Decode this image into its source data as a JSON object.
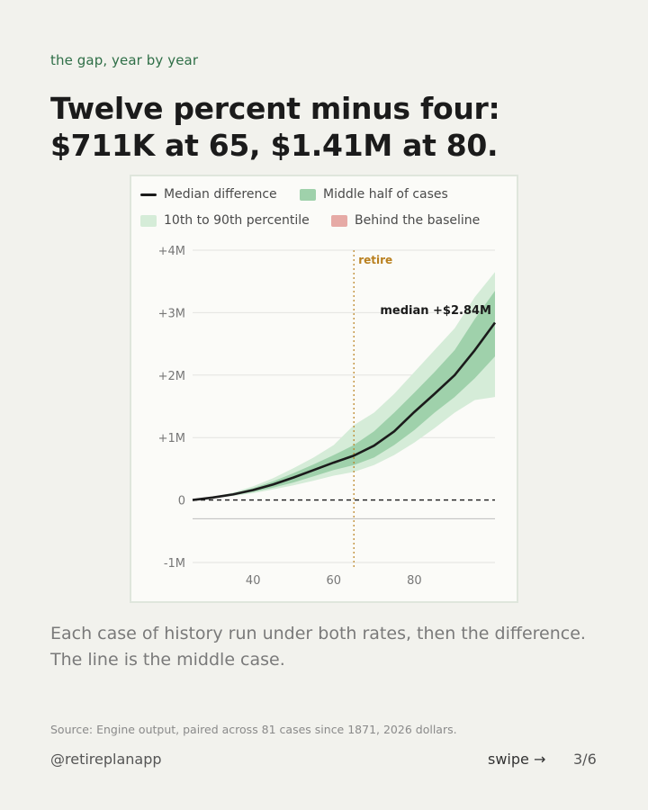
{
  "eyebrow": "the gap, year by year",
  "headline": "Twelve percent minus four: $711K at 65, $1.41M at 80.",
  "body_text": "Each case of history run under both rates, then the difference. The line is the middle case.",
  "source": "Source: Engine output, paired across 81 cases since 1871, 2026 dollars.",
  "footer": {
    "handle": "@retireplanapp",
    "swipe": "swipe →",
    "page": "3/6"
  },
  "colors": {
    "median": "#1b1b1b",
    "middle_half": "#9fd1ab",
    "p10_p90": "#d5ecd8",
    "behind": "#e6aaa6",
    "retire": "#b9801f"
  },
  "chart_data": {
    "type": "area",
    "legend": [
      {
        "label": "Median difference",
        "kind": "line",
        "color": "#1b1b1b"
      },
      {
        "label": "Middle half of cases",
        "kind": "box",
        "color": "#9fd1ab"
      },
      {
        "label": "10th to 90th percentile",
        "kind": "box",
        "color": "#d5ecd8"
      },
      {
        "label": "Behind the baseline",
        "kind": "box",
        "color": "#e6aaa6"
      }
    ],
    "x": [
      25,
      30,
      35,
      40,
      45,
      50,
      55,
      60,
      65,
      70,
      75,
      80,
      85,
      90,
      95,
      100
    ],
    "xlim": [
      25,
      100
    ],
    "xticks": [
      40,
      60,
      80
    ],
    "ylim": [
      -1000000,
      4000000
    ],
    "yticks": [
      -1000000,
      0,
      1000000,
      2000000,
      3000000,
      4000000
    ],
    "ytick_labels": [
      "-1M",
      "0",
      "+1M",
      "+2M",
      "+3M",
      "+4M"
    ],
    "series": [
      {
        "name": "Median difference",
        "values": [
          0,
          40000,
          90000,
          160000,
          250000,
          360000,
          480000,
          600000,
          711000,
          870000,
          1100000,
          1410000,
          1700000,
          2000000,
          2400000,
          2840000
        ]
      },
      {
        "name": "25th percentile",
        "values": [
          0,
          35000,
          75000,
          130000,
          200000,
          280000,
          380000,
          480000,
          560000,
          680000,
          880000,
          1120000,
          1400000,
          1650000,
          1950000,
          2300000
        ]
      },
      {
        "name": "75th percentile",
        "values": [
          0,
          45000,
          105000,
          190000,
          300000,
          430000,
          570000,
          720000,
          880000,
          1100000,
          1400000,
          1720000,
          2050000,
          2400000,
          2900000,
          3350000
        ]
      },
      {
        "name": "10th percentile",
        "values": [
          0,
          30000,
          65000,
          110000,
          170000,
          235000,
          310000,
          390000,
          450000,
          560000,
          720000,
          920000,
          1150000,
          1400000,
          1600000,
          1650000
        ]
      },
      {
        "name": "90th percentile",
        "values": [
          0,
          50000,
          120000,
          220000,
          350000,
          510000,
          680000,
          880000,
          1200000,
          1400000,
          1700000,
          2050000,
          2400000,
          2750000,
          3250000,
          3650000
        ]
      }
    ],
    "annotations": [
      {
        "text": "retire",
        "x": 65
      },
      {
        "text": "median +$2.84M",
        "x": 100,
        "y": 2840000
      }
    ],
    "baseline": 0,
    "grid": true,
    "legend_position": "top"
  }
}
